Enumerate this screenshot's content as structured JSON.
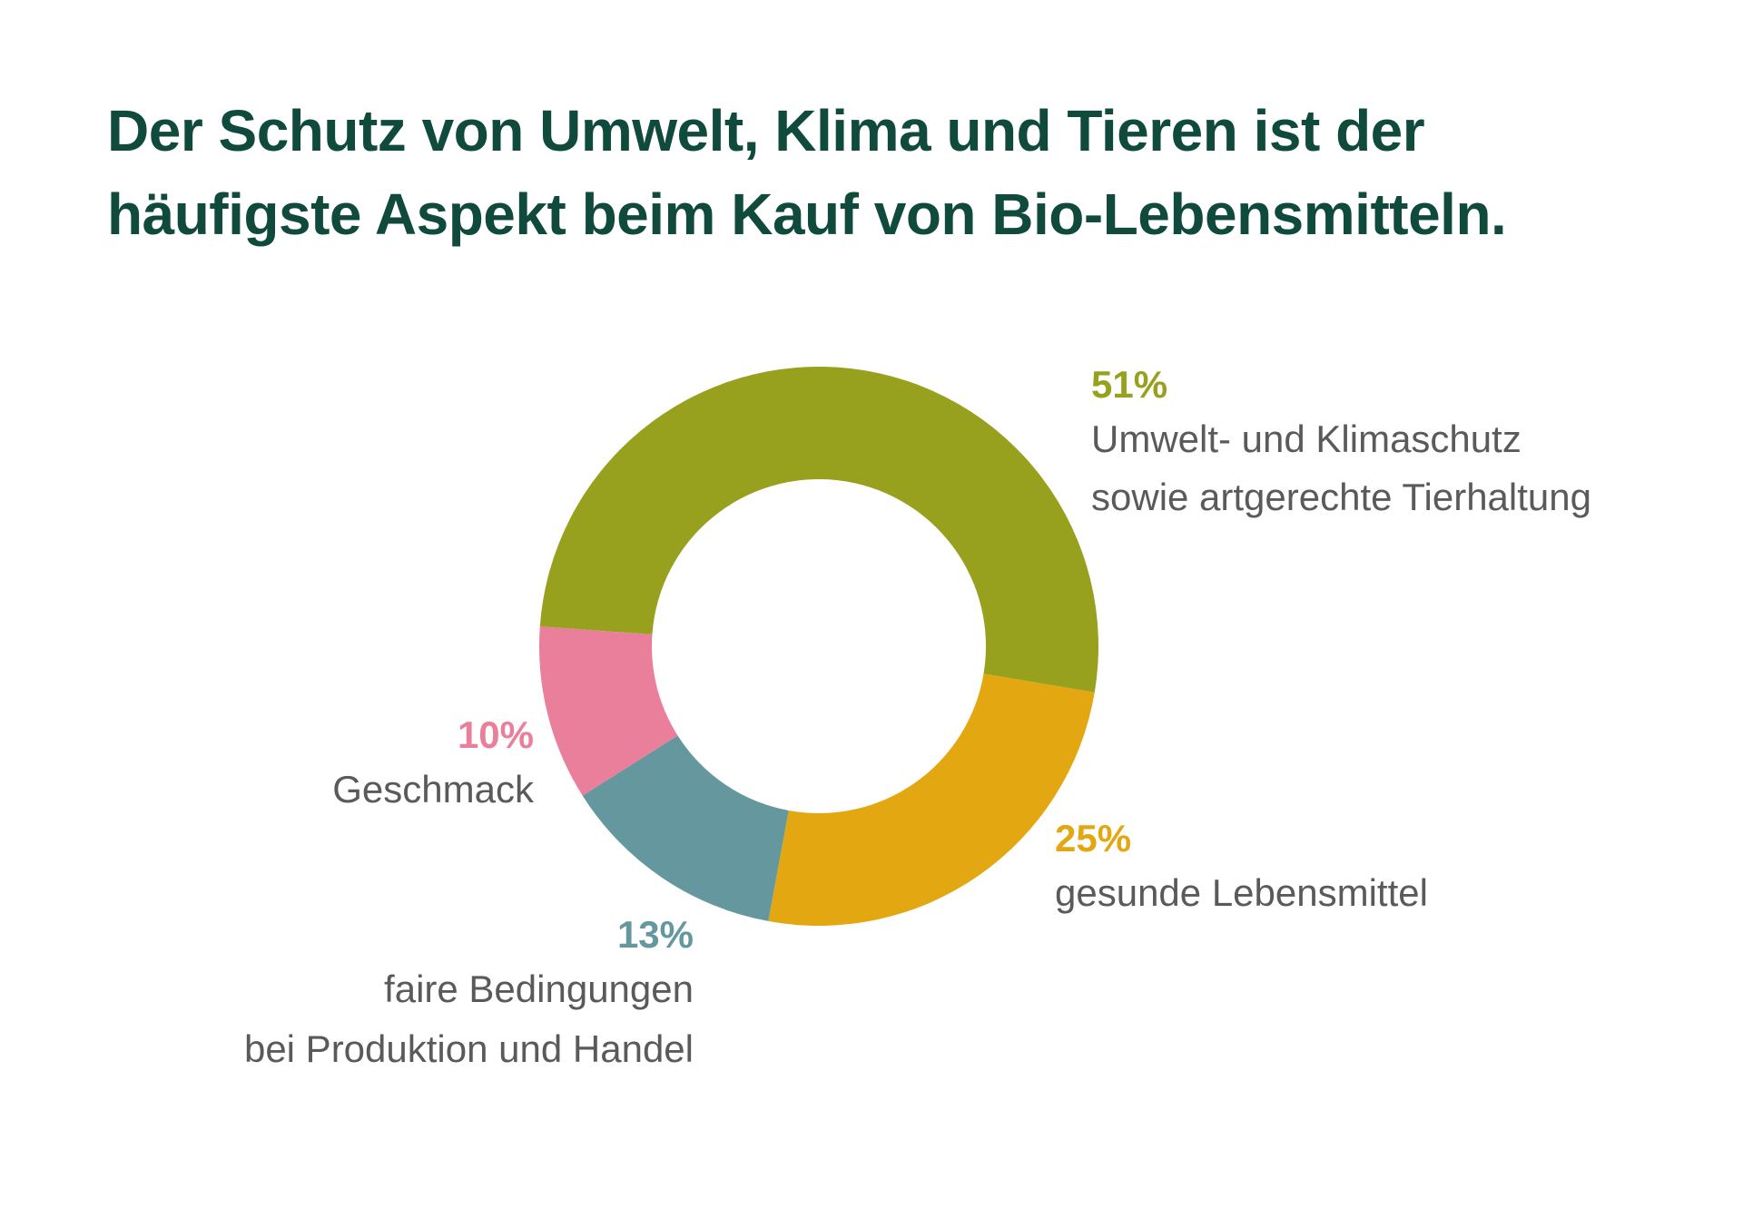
{
  "title_lines": [
    "Der Schutz von Umwelt, Klima und Tieren ist der",
    "häufigste Aspekt beim Kauf von Bio-Lebensmitteln."
  ],
  "chart_data": {
    "type": "pie",
    "variant": "donut",
    "unit": "%",
    "slices": [
      {
        "name": "Umwelt- und Klimaschutz sowie artgerechte Tierhaltung",
        "value": 51,
        "label": "51%",
        "lines": [
          "Umwelt- und Klimaschutz",
          "sowie artgerechte Tierhaltung"
        ],
        "color": "#97a11d"
      },
      {
        "name": "gesunde Lebensmittel",
        "value": 25,
        "label": "25%",
        "lines": [
          "gesunde Lebensmittel"
        ],
        "color": "#e3a811"
      },
      {
        "name": "faire Bedingungen bei Produktion und Handel",
        "value": 13,
        "label": "13%",
        "lines": [
          "faire Bedingungen",
          "bei Produktion und Handel"
        ],
        "color": "#64989e"
      },
      {
        "name": "Geschmack",
        "value": 10,
        "label": "10%",
        "lines": [
          "Geschmack"
        ],
        "color": "#ea7f9b"
      }
    ],
    "legend_placement": "around"
  }
}
